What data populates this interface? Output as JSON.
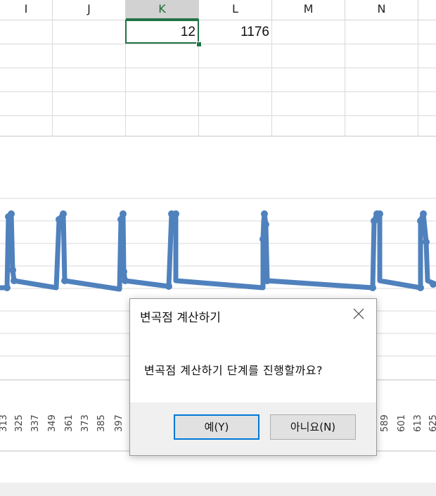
{
  "spreadsheet": {
    "columns": [
      "I",
      "J",
      "K",
      "L",
      "M",
      "N"
    ],
    "active_column": "K",
    "cells": {
      "K1": "12",
      "L1": "1176"
    }
  },
  "chart": {
    "x_tick_labels": [
      "313",
      "325",
      "337",
      "349",
      "361",
      "373",
      "385",
      "397",
      "589",
      "601",
      "613",
      "625"
    ],
    "series_color": "#4f81bd"
  },
  "dialog": {
    "title": "변곡점 계산하기",
    "message": "변곡점 계산하기 단계를 진행할까요?",
    "yes_label": "예(Y)",
    "no_label": "아니요(N)",
    "close_icon": "close-icon"
  },
  "colors": {
    "selection_green": "#217346",
    "dialog_accent": "#0078d7"
  }
}
